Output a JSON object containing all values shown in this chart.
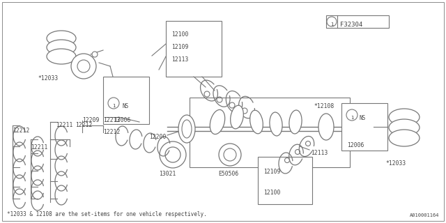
{
  "bg_color": "#ffffff",
  "line_color": "#777777",
  "text_color": "#444444",
  "bottom_note": "*12033 & 12108 are the set-items for one vehicle respectively.",
  "doc_number": "A010001164",
  "fig_code": "F32304",
  "border_color": "#aaaaaa"
}
